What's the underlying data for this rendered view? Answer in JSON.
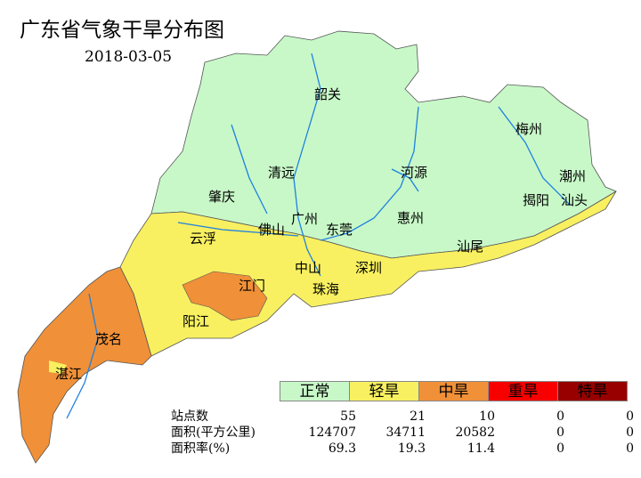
{
  "title": "广东省气象干旱分布图",
  "date": "2018-03-05",
  "colors": {
    "正常": "#c8f8c8",
    "轻旱": "#f8f060",
    "中旱": "#f09038",
    "重旱": "#f80000",
    "特旱": "#980000",
    "river": "#2080e0"
  },
  "legend": [
    "正常",
    "轻旱",
    "中旱",
    "重旱",
    "特旱"
  ],
  "cities": [
    "韶关",
    "梅州",
    "清远",
    "河源",
    "潮州",
    "肇庆",
    "揭阳",
    "汕头",
    "广州",
    "佛山",
    "东莞",
    "惠州",
    "云浮",
    "汕尾",
    "中山",
    "深圳",
    "江门",
    "珠海",
    "阳江",
    "茂名",
    "湛江"
  ],
  "stats": {
    "rows": [
      {
        "label": "站点数",
        "values": [
          "55",
          "21",
          "10",
          "0",
          "0"
        ]
      },
      {
        "label": "面积(平方公里)",
        "values": [
          "124707",
          "34711",
          "20582",
          "0",
          "0"
        ]
      },
      {
        "label": "面积率(%)",
        "values": [
          "69.3",
          "19.3",
          "11.4",
          "0",
          "0"
        ]
      }
    ]
  }
}
